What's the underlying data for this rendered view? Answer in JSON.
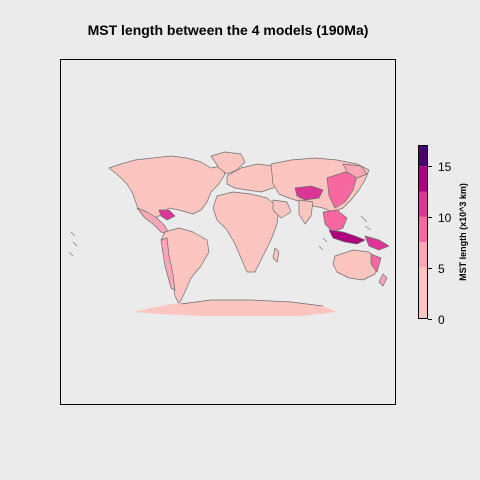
{
  "title": "MST length between the 4 models (190Ma)",
  "legend": {
    "title": "MST length (x10^3 km)",
    "ticks": [
      "0",
      "5",
      "10",
      "15"
    ],
    "range": [
      0,
      17
    ],
    "bins": [
      {
        "from": 0,
        "to": 5,
        "color": "#fcc5c0"
      },
      {
        "from": 5,
        "to": 7.5,
        "color": "#f9a7b6"
      },
      {
        "from": 7.5,
        "to": 10,
        "color": "#f768a1"
      },
      {
        "from": 10,
        "to": 12.5,
        "color": "#dd3497"
      },
      {
        "from": 12.5,
        "to": 15,
        "color": "#ae017e"
      },
      {
        "from": 15,
        "to": 17,
        "color": "#49006a"
      }
    ]
  },
  "colors": {
    "background": "#ebebeb",
    "coastline": "#6e6e6e"
  }
}
